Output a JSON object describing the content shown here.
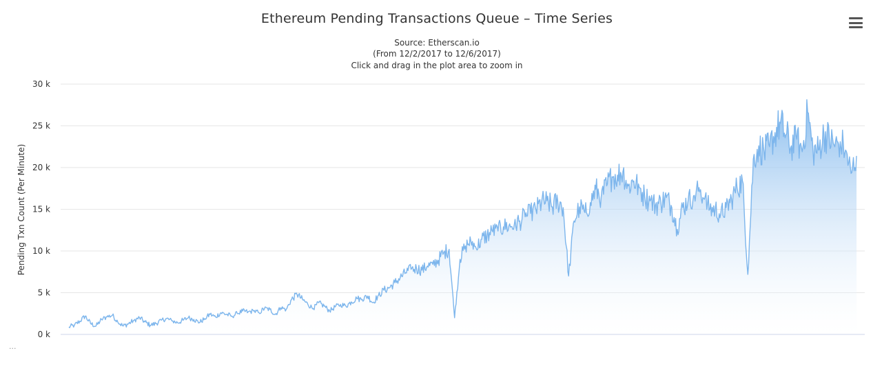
{
  "menu": {
    "icon": "hamburger-menu-icon"
  },
  "footer_marker": "...",
  "chart_data": {
    "type": "area",
    "title": "Ethereum Pending Transactions Queue – Time Series",
    "subtitle": [
      "Source: Etherscan.io",
      "(From 12/2/2017 to 12/6/2017)",
      "Click and drag in the plot area to zoom in"
    ],
    "xlabel": "",
    "ylabel": "Pending Txn Count (Per Minute)",
    "x_range": [
      "12/2/2017",
      "12/6/2017"
    ],
    "ylim": [
      0,
      30000
    ],
    "y_ticks": [
      {
        "value": 0,
        "label": "0 k"
      },
      {
        "value": 5000,
        "label": "5 k"
      },
      {
        "value": 10000,
        "label": "10 k"
      },
      {
        "value": 15000,
        "label": "15 k"
      },
      {
        "value": 20000,
        "label": "20 k"
      },
      {
        "value": 25000,
        "label": "25 k"
      },
      {
        "value": 30000,
        "label": "30 k"
      }
    ],
    "grid": true,
    "legend": "none",
    "colors": {
      "line": "#7cb5ec",
      "fill_top": "#7cb5ec",
      "fill_bottom": "#ffffff",
      "grid": "#e6e6e6"
    },
    "series": [
      {
        "values": [
          900,
          1100,
          1600,
          2200,
          1300,
          1000,
          1800,
          2100,
          2300,
          1500,
          1000,
          1300,
          1700,
          2000,
          1500,
          1100,
          1300,
          1700,
          1900,
          1600,
          1400,
          1700,
          2000,
          1800,
          1400,
          1900,
          2400,
          2100,
          2600,
          2400,
          2200,
          2500,
          2800,
          2700,
          2800,
          2600,
          3100,
          3000,
          2400,
          3200,
          3000,
          4200,
          4800,
          4200,
          3600,
          3100,
          3800,
          3400,
          2800,
          3300,
          3600,
          3400,
          3900,
          4300,
          4200,
          4600,
          3800,
          4700,
          5300,
          5600,
          6200,
          6800,
          7400,
          7800,
          7900,
          7700,
          8200,
          8400,
          8900,
          9800,
          10200,
          2000,
          9000,
          10600,
          11200,
          10300,
          11400,
          11900,
          12300,
          12400,
          12900,
          13000,
          13200,
          13600,
          14100,
          14500,
          14900,
          15800,
          16000,
          15300,
          16000,
          15200,
          7000,
          13600,
          15300,
          14600,
          15800,
          17400,
          16500,
          17800,
          18900,
          19100,
          19500,
          17800,
          18400,
          17600,
          16500,
          16000,
          15500,
          15800,
          16400,
          15200,
          12600,
          15200,
          16000,
          16600,
          17600,
          16200,
          15000,
          15000,
          14400,
          15200,
          16200,
          17600,
          18400,
          7200,
          21000,
          22600,
          21800,
          22500,
          24200,
          25300,
          23900,
          22600,
          23400,
          21900,
          26600,
          22000,
          22100,
          24000,
          23500,
          22500,
          23100,
          22100,
          19300,
          21400
        ]
      }
    ]
  }
}
